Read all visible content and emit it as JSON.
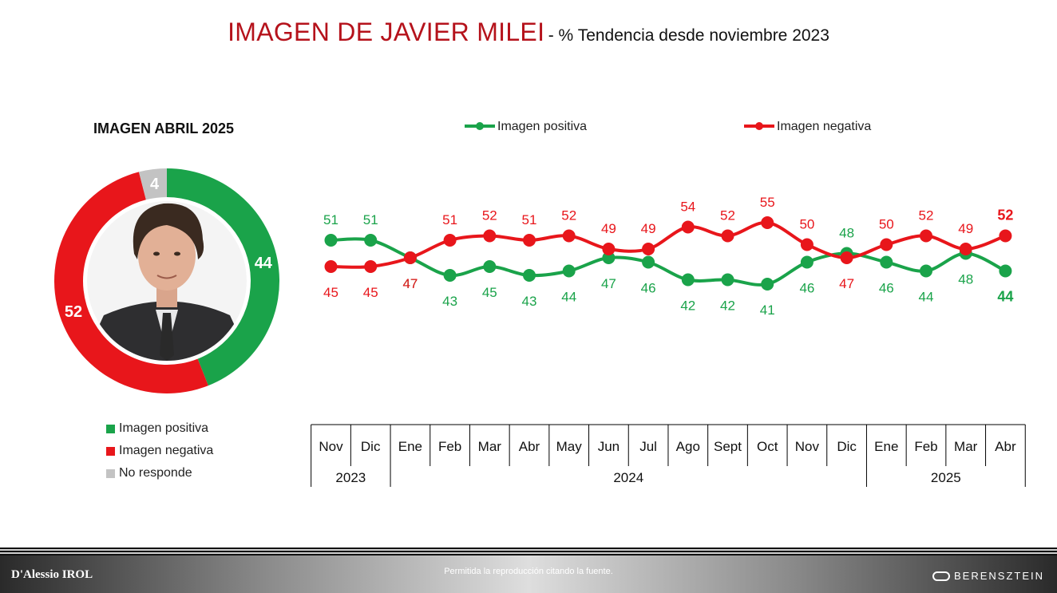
{
  "header": {
    "title": "IMAGEN DE JAVIER MILEI",
    "subtitle": "- % Tendencia desde noviembre 2023"
  },
  "donut": {
    "title": "IMAGEN ABRIL 2025",
    "segments": [
      {
        "name": "Imagen positiva",
        "value": 44,
        "color": "#1aa34a"
      },
      {
        "name": "Imagen negativa",
        "value": 52,
        "color": "#e8161b"
      },
      {
        "name": "No responde",
        "value": 4,
        "color": "#c3c3c3"
      }
    ],
    "portrait_icon": "person-portrait-icon"
  },
  "legend_left": [
    {
      "label": "Imagen positiva",
      "color": "#1aa34a"
    },
    {
      "label": "Imagen negativa",
      "color": "#e8161b"
    },
    {
      "label": "No responde",
      "color": "#c3c3c3"
    }
  ],
  "chart_data": {
    "type": "line",
    "x": [
      "Nov",
      "Dic",
      "Ene",
      "Feb",
      "Mar",
      "Abr",
      "May",
      "Jun",
      "Jul",
      "Ago",
      "Sept",
      "Oct",
      "Nov",
      "Dic",
      "Ene",
      "Feb",
      "Mar",
      "Abr"
    ],
    "years": [
      {
        "label": "2023",
        "span": 2
      },
      {
        "label": "2024",
        "span": 12
      },
      {
        "label": "2025",
        "span": 4
      }
    ],
    "series": [
      {
        "name": "Imagen positiva",
        "color": "#1aa34a",
        "values": [
          51,
          51,
          47,
          43,
          45,
          43,
          44,
          47,
          46,
          42,
          42,
          41,
          46,
          48,
          46,
          44,
          48,
          44
        ]
      },
      {
        "name": "Imagen negativa",
        "color": "#e8161b",
        "values": [
          45,
          45,
          47,
          51,
          52,
          51,
          52,
          49,
          49,
          54,
          52,
          55,
          50,
          47,
          50,
          52,
          49,
          52
        ]
      }
    ],
    "legend_position": "top",
    "grid": false
  },
  "footer": {
    "left_logo": "D'Alessio IROL",
    "note": "Permitida la reproducción citando la fuente.",
    "right_logo": "BERENSZTEIN"
  }
}
